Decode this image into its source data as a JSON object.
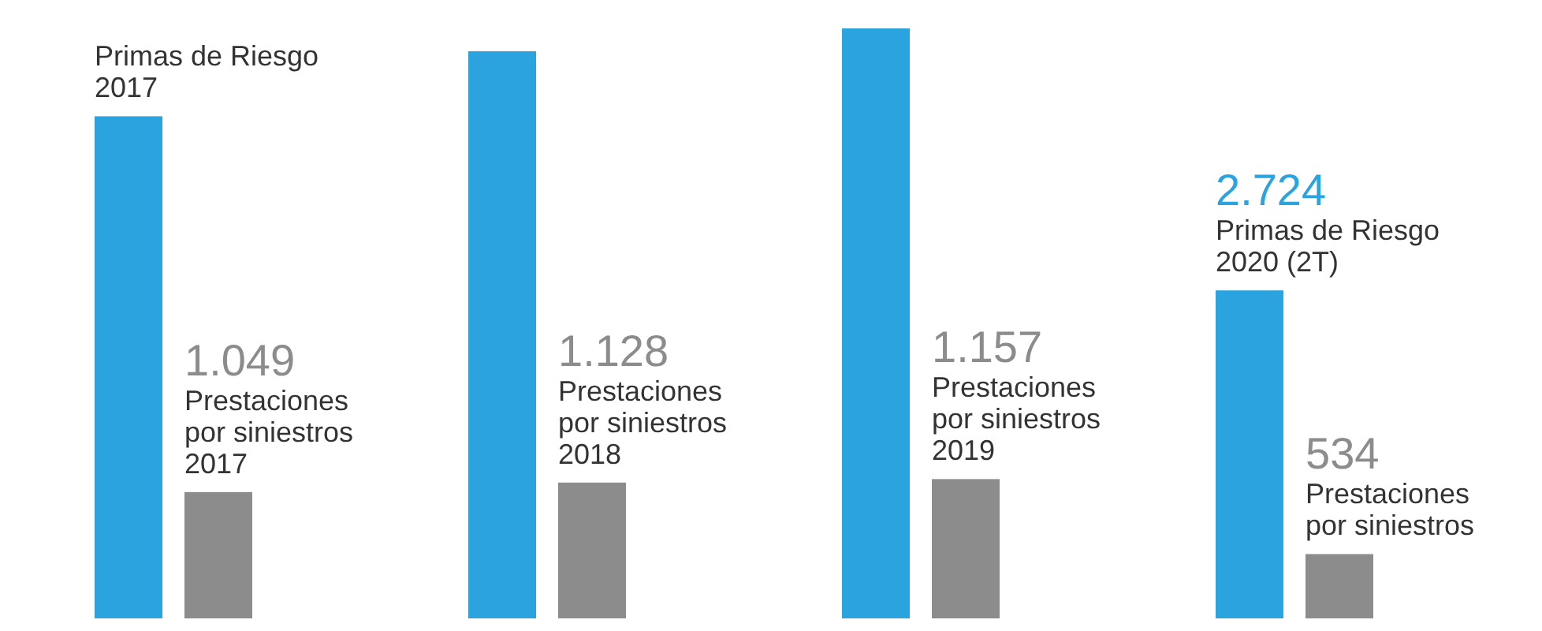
{
  "chart_data": {
    "type": "bar",
    "categories": [
      null,
      null,
      null,
      null,
      null,
      null,
      null,
      null
    ],
    "values": [
      4170,
      1049,
      4710,
      1128,
      4900,
      1157,
      2724,
      534
    ],
    "colors": [
      "#2aa3df",
      "#8c8c8c",
      "#2aa3df",
      "#8c8c8c",
      "#2aa3df",
      "#8c8c8c",
      "#2aa3df",
      "#8c8c8c"
    ],
    "value_labels": [
      null,
      "1.049",
      null,
      "1.128",
      null,
      "1.157",
      "2.724",
      "534"
    ],
    "annotations": [
      "Primas de Riesgo 2017",
      "Prestaciones por siniestros 2017",
      "Prestaciones por siniestros 2018",
      "Prestaciones por siniestros 2019",
      "Primas de Riesgo 2020 (2T)",
      "Prestaciones por siniestros"
    ]
  }
}
